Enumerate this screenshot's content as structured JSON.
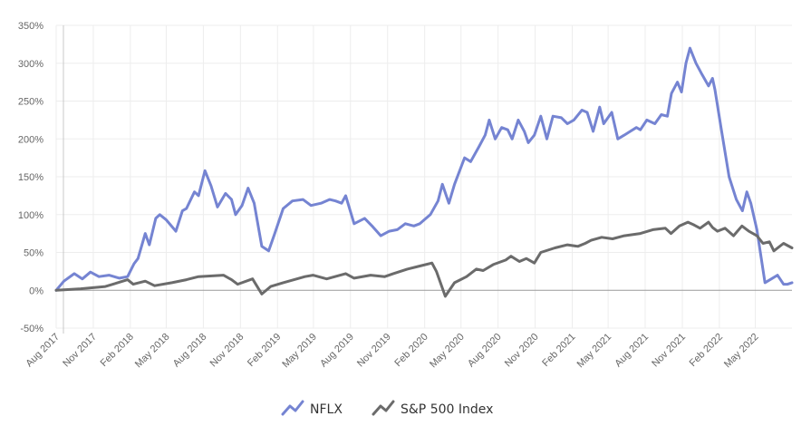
{
  "chart_data": {
    "type": "line",
    "title": "",
    "xlabel": "",
    "ylabel": "",
    "ylim": [
      -50,
      350
    ],
    "y_ticks": [
      "350%",
      "300%",
      "250%",
      "200%",
      "150%",
      "100%",
      "50%",
      "0%",
      "-50%"
    ],
    "y_tick_values": [
      350,
      300,
      250,
      200,
      150,
      100,
      50,
      0,
      -50
    ],
    "x_range": [
      "2017-08-01",
      "2022-07-31"
    ],
    "x_tick_labels": [
      "Aug 2017",
      "Nov 2017",
      "Feb 2018",
      "May 2018",
      "Aug 2018",
      "Nov 2018",
      "Feb 2019",
      "May 2019",
      "Aug 2019",
      "Nov 2019",
      "Feb 2020",
      "May 2020",
      "Aug 2020",
      "Nov 2020",
      "Feb 2021",
      "May 2021",
      "Aug 2021",
      "Nov 2021",
      "Feb 2022",
      "May 2022"
    ],
    "x_tick_dates": [
      "2017-08-01",
      "2017-11-01",
      "2018-02-01",
      "2018-05-01",
      "2018-08-01",
      "2018-11-01",
      "2019-02-01",
      "2019-05-01",
      "2019-08-01",
      "2019-11-01",
      "2020-02-01",
      "2020-05-01",
      "2020-08-01",
      "2020-11-01",
      "2021-02-01",
      "2021-05-01",
      "2021-08-01",
      "2021-11-01",
      "2022-02-01",
      "2022-05-01"
    ],
    "grid": true,
    "legend_position": "bottom",
    "series": [
      {
        "name": "NFLX",
        "color": "#7584d2",
        "x": [
          "2017-08-01",
          "2017-08-20",
          "2017-09-15",
          "2017-10-05",
          "2017-10-25",
          "2017-11-15",
          "2017-12-10",
          "2018-01-05",
          "2018-01-25",
          "2018-02-10",
          "2018-02-20",
          "2018-03-10",
          "2018-03-20",
          "2018-04-05",
          "2018-04-15",
          "2018-05-01",
          "2018-05-25",
          "2018-06-10",
          "2018-06-20",
          "2018-07-10",
          "2018-07-20",
          "2018-08-05",
          "2018-08-20",
          "2018-09-05",
          "2018-09-25",
          "2018-10-10",
          "2018-10-20",
          "2018-11-05",
          "2018-11-20",
          "2018-12-05",
          "2018-12-24",
          "2019-01-10",
          "2019-01-25",
          "2019-02-15",
          "2019-03-10",
          "2019-04-05",
          "2019-04-25",
          "2019-05-20",
          "2019-06-10",
          "2019-06-25",
          "2019-07-10",
          "2019-07-20",
          "2019-08-10",
          "2019-09-05",
          "2019-09-25",
          "2019-10-15",
          "2019-11-05",
          "2019-11-25",
          "2019-12-15",
          "2020-01-05",
          "2020-01-20",
          "2020-02-15",
          "2020-03-05",
          "2020-03-16",
          "2020-04-01",
          "2020-04-15",
          "2020-05-10",
          "2020-05-25",
          "2020-06-15",
          "2020-06-30",
          "2020-07-10",
          "2020-07-25",
          "2020-08-10",
          "2020-08-25",
          "2020-09-05",
          "2020-09-20",
          "2020-10-05",
          "2020-10-15",
          "2020-10-30",
          "2020-11-15",
          "2020-11-30",
          "2020-12-15",
          "2021-01-05",
          "2021-01-20",
          "2021-02-05",
          "2021-02-25",
          "2021-03-10",
          "2021-03-25",
          "2021-04-10",
          "2021-04-20",
          "2021-05-10",
          "2021-05-25",
          "2021-06-10",
          "2021-06-25",
          "2021-07-10",
          "2021-07-20",
          "2021-08-05",
          "2021-08-25",
          "2021-09-10",
          "2021-09-25",
          "2021-10-05",
          "2021-10-20",
          "2021-10-30",
          "2021-11-10",
          "2021-11-20",
          "2021-12-05",
          "2021-12-20",
          "2022-01-05",
          "2022-01-15",
          "2022-01-21",
          "2022-02-05",
          "2022-02-25",
          "2022-03-15",
          "2022-03-30",
          "2022-04-10",
          "2022-04-20",
          "2022-05-05",
          "2022-05-25",
          "2022-06-10",
          "2022-06-25",
          "2022-07-10",
          "2022-07-20",
          "2022-07-31"
        ],
        "y": [
          0,
          12,
          22,
          15,
          24,
          18,
          20,
          16,
          18,
          35,
          42,
          75,
          60,
          95,
          100,
          93,
          78,
          105,
          108,
          130,
          125,
          158,
          138,
          110,
          128,
          120,
          100,
          112,
          135,
          115,
          58,
          52,
          75,
          108,
          118,
          120,
          112,
          115,
          120,
          118,
          115,
          125,
          88,
          95,
          84,
          72,
          78,
          80,
          88,
          85,
          88,
          100,
          118,
          140,
          115,
          140,
          175,
          170,
          190,
          205,
          225,
          200,
          215,
          212,
          200,
          225,
          210,
          195,
          205,
          230,
          200,
          230,
          228,
          220,
          225,
          238,
          235,
          210,
          242,
          220,
          235,
          200,
          205,
          210,
          215,
          212,
          225,
          220,
          232,
          230,
          260,
          275,
          262,
          300,
          320,
          300,
          285,
          270,
          280,
          265,
          215,
          150,
          120,
          105,
          130,
          115,
          80,
          10,
          15,
          20,
          8,
          8,
          10
        ]
      },
      {
        "name": "S&P 500 Index",
        "color": "#6b6b6b",
        "x": [
          "2017-08-01",
          "2017-10-01",
          "2017-12-01",
          "2018-01-25",
          "2018-02-08",
          "2018-03-10",
          "2018-04-02",
          "2018-05-15",
          "2018-06-20",
          "2018-07-20",
          "2018-09-20",
          "2018-10-10",
          "2018-10-25",
          "2018-12-01",
          "2018-12-24",
          "2019-01-15",
          "2019-02-15",
          "2019-04-10",
          "2019-04-30",
          "2019-06-03",
          "2019-07-20",
          "2019-08-10",
          "2019-09-20",
          "2019-10-25",
          "2019-11-15",
          "2019-12-20",
          "2020-01-20",
          "2020-02-19",
          "2020-03-01",
          "2020-03-23",
          "2020-04-15",
          "2020-05-15",
          "2020-06-08",
          "2020-06-25",
          "2020-07-20",
          "2020-08-20",
          "2020-09-02",
          "2020-09-23",
          "2020-10-10",
          "2020-10-30",
          "2020-11-15",
          "2020-12-20",
          "2021-01-20",
          "2021-02-15",
          "2021-03-05",
          "2021-03-20",
          "2021-04-15",
          "2021-05-12",
          "2021-06-10",
          "2021-07-20",
          "2021-08-20",
          "2021-09-20",
          "2021-10-04",
          "2021-10-25",
          "2021-11-15",
          "2021-12-01",
          "2021-12-15",
          "2022-01-05",
          "2022-01-15",
          "2022-01-27",
          "2022-02-15",
          "2022-03-08",
          "2022-03-29",
          "2022-04-15",
          "2022-05-05",
          "2022-05-20",
          "2022-06-05",
          "2022-06-16",
          "2022-07-10",
          "2022-07-31"
        ],
        "y": [
          0,
          2,
          5,
          14,
          8,
          12,
          6,
          10,
          14,
          18,
          20,
          14,
          8,
          15,
          -5,
          5,
          10,
          18,
          20,
          15,
          22,
          16,
          20,
          18,
          22,
          28,
          32,
          36,
          25,
          -8,
          10,
          18,
          28,
          26,
          34,
          40,
          45,
          38,
          42,
          36,
          50,
          56,
          60,
          58,
          62,
          66,
          70,
          68,
          72,
          75,
          80,
          82,
          75,
          85,
          90,
          86,
          82,
          90,
          83,
          78,
          82,
          72,
          85,
          78,
          72,
          62,
          64,
          52,
          62,
          56
        ]
      }
    ]
  }
}
